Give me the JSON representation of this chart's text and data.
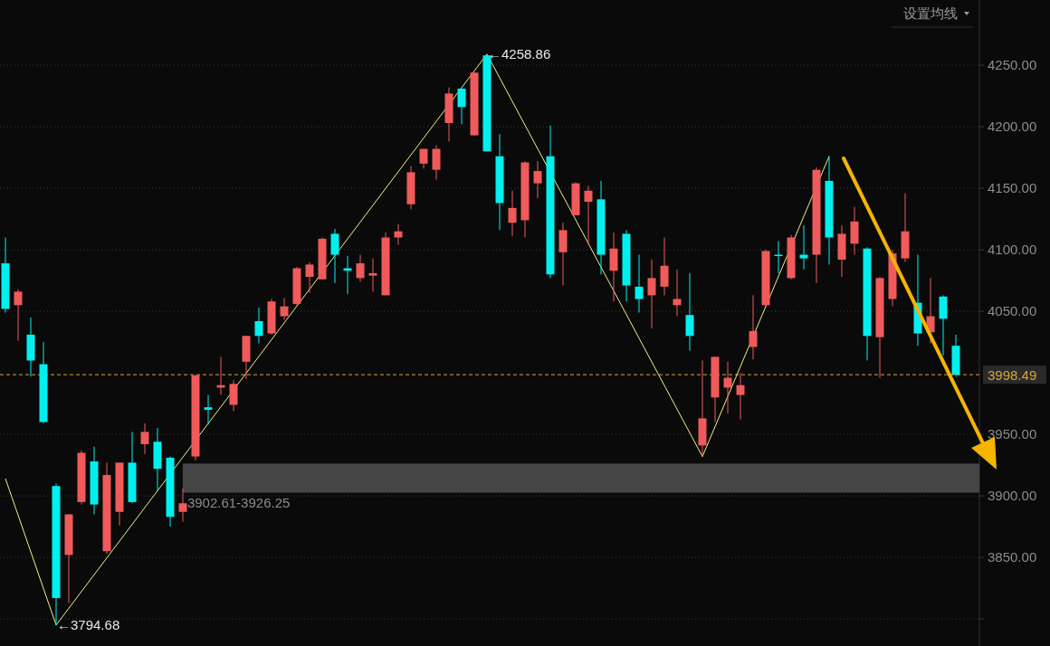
{
  "chart_data": {
    "type": "candlestick",
    "categories": [
      null,
      null,
      null,
      null,
      null,
      null,
      null,
      null,
      null,
      null,
      null,
      null,
      null,
      null,
      null,
      null,
      null,
      null,
      null,
      null,
      null,
      null,
      null,
      null,
      null,
      null,
      null,
      null,
      null,
      null,
      null,
      null,
      null,
      null,
      null,
      null,
      null,
      null,
      null,
      null,
      null,
      null,
      null,
      null,
      null,
      null,
      null,
      null,
      null,
      null,
      null,
      null,
      null,
      null,
      null,
      null,
      null,
      null,
      null,
      null,
      null,
      null,
      null,
      null,
      null,
      null,
      null,
      null,
      null,
      null,
      null,
      null,
      null,
      null,
      null,
      null
    ],
    "ohlc": [
      [
        4089,
        4110,
        4049,
        4052
      ],
      [
        4055,
        4068,
        4026,
        4066
      ],
      [
        4031,
        4045,
        3997,
        4010
      ],
      [
        4007,
        4025,
        3959,
        3960
      ],
      [
        3908,
        3910,
        3794.68,
        3817
      ],
      [
        3852,
        3885,
        3813,
        3885
      ],
      [
        3895,
        3937,
        3893,
        3935
      ],
      [
        3928,
        3940,
        3885,
        3893
      ],
      [
        3855,
        3927,
        3853,
        3917
      ],
      [
        3887,
        3927,
        3876,
        3927
      ],
      [
        3927,
        3952,
        3894,
        3895
      ],
      [
        3942,
        3959,
        3934,
        3952
      ],
      [
        3944,
        3955,
        3904,
        3922
      ],
      [
        3931,
        3932,
        3875,
        3883
      ],
      [
        3887,
        3906,
        3879,
        3894
      ],
      [
        3932,
        3998,
        3929,
        3998
      ],
      [
        3972,
        3982,
        3958,
        3970
      ],
      [
        3988,
        4013,
        3982,
        3990
      ],
      [
        3974,
        3994,
        3969,
        3991
      ],
      [
        4009,
        4030,
        3995,
        4030
      ],
      [
        4042,
        4053,
        4024,
        4030
      ],
      [
        4032,
        4060,
        4031,
        4058
      ],
      [
        4046,
        4061,
        4043,
        4054
      ],
      [
        4056,
        4086,
        4055,
        4085
      ],
      [
        4078,
        4090,
        4065,
        4088
      ],
      [
        4076,
        4110,
        4076,
        4109
      ],
      [
        4113,
        4117,
        4073,
        4096
      ],
      [
        4085,
        4095,
        4064,
        4083
      ],
      [
        4077,
        4096,
        4074,
        4089
      ],
      [
        4079,
        4093,
        4066,
        4081
      ],
      [
        4063,
        4114,
        4063,
        4110
      ],
      [
        4110,
        4121,
        4104,
        4115
      ],
      [
        4137,
        4168,
        4133,
        4163
      ],
      [
        4170,
        4182,
        4166,
        4182
      ],
      [
        4165,
        4185,
        4157,
        4182
      ],
      [
        4203,
        4232,
        4188,
        4227
      ],
      [
        4231,
        4231,
        4202,
        4216
      ],
      [
        4193,
        4244,
        4193,
        4244
      ],
      [
        4258,
        4258.86,
        4180,
        4180
      ],
      [
        4176,
        4194,
        4116,
        4138
      ],
      [
        4122,
        4148,
        4111,
        4134
      ],
      [
        4124,
        4172,
        4110,
        4171
      ],
      [
        4154,
        4172,
        4142,
        4164
      ],
      [
        4176,
        4201,
        4077,
        4080
      ],
      [
        4098,
        4122,
        4071,
        4116
      ],
      [
        4128,
        4155,
        4128,
        4154
      ],
      [
        4139,
        4152,
        4104,
        4148
      ],
      [
        4141,
        4156,
        4080,
        4096
      ],
      [
        4083,
        4114,
        4058,
        4101
      ],
      [
        4113,
        4116,
        4058,
        4071
      ],
      [
        4070,
        4096,
        4049,
        4060
      ],
      [
        4063,
        4092,
        4036,
        4077
      ],
      [
        4070,
        4110,
        4063,
        4087
      ],
      [
        4055,
        4084,
        4046,
        4060
      ],
      [
        4047,
        4081,
        4018,
        4030
      ],
      [
        3941,
        4010,
        3932,
        3963
      ],
      [
        3980,
        4013,
        3960,
        4013
      ],
      [
        3988,
        4009,
        3967,
        3996
      ],
      [
        3982,
        4000,
        3962,
        3990
      ],
      [
        4021,
        4063,
        4011,
        4034
      ],
      [
        4055,
        4100,
        4054,
        4099
      ],
      [
        4096,
        4107,
        4081,
        4095
      ],
      [
        4077,
        4112,
        4076,
        4110
      ],
      [
        4096,
        4120,
        4084,
        4093
      ],
      [
        4096,
        4167,
        4073,
        4165
      ],
      [
        4156,
        4176,
        4088,
        4110
      ],
      [
        4092,
        4120,
        4078,
        4113
      ],
      [
        4105,
        4135,
        4096,
        4123
      ],
      [
        4101,
        4102,
        4010,
        4030
      ],
      [
        4029,
        4078,
        3996,
        4077
      ],
      [
        4060,
        4100,
        4054,
        4097
      ],
      [
        4093,
        4146,
        4090,
        4115
      ],
      [
        4057,
        4096,
        4022,
        4032
      ],
      [
        4033,
        4077,
        4024,
        4046
      ],
      [
        4062,
        4063,
        4014,
        4044
      ],
      [
        4022,
        4031,
        3997,
        3998.49
      ]
    ],
    "colors": [
      "#00f0f0",
      "#f05a5a",
      "#00f0f0",
      "#00f0f0",
      "#00f0f0",
      "#f05a5a",
      "#f05a5a",
      "#00f0f0",
      "#f05a5a",
      "#f05a5a",
      "#00f0f0",
      "#f05a5a",
      "#00f0f0",
      "#00f0f0",
      "#f05a5a",
      "#f05a5a",
      "#00f0f0",
      "#f05a5a",
      "#f05a5a",
      "#f05a5a",
      "#00f0f0",
      "#f05a5a",
      "#f05a5a",
      "#f05a5a",
      "#f05a5a",
      "#f05a5a",
      "#00f0f0",
      "#00f0f0",
      "#f05a5a",
      "#f05a5a",
      "#f05a5a",
      "#f05a5a",
      "#f05a5a",
      "#f05a5a",
      "#f05a5a",
      "#f05a5a",
      "#00f0f0",
      "#f05a5a",
      "#00f0f0",
      "#00f0f0",
      "#f05a5a",
      "#f05a5a",
      "#f05a5a",
      "#00f0f0",
      "#f05a5a",
      "#f05a5a",
      "#f05a5a",
      "#00f0f0",
      "#f05a5a",
      "#00f0f0",
      "#00f0f0",
      "#f05a5a",
      "#f05a5a",
      "#f05a5a",
      "#00f0f0",
      "#f05a5a",
      "#f05a5a",
      "#f05a5a",
      "#f05a5a",
      "#f05a5a",
      "#f05a5a",
      "#00f0f0",
      "#f05a5a",
      "#00f0f0",
      "#f05a5a",
      "#00f0f0",
      "#f05a5a",
      "#f05a5a",
      "#00f0f0",
      "#f05a5a",
      "#f05a5a",
      "#f05a5a",
      "#00f0f0",
      "#f05a5a",
      "#00f0f0",
      "#00f0f0"
    ],
    "series": [
      {
        "type": "line",
        "values": [
          3914,
          null,
          null,
          null,
          3795,
          null,
          null,
          null,
          null,
          null,
          null,
          null,
          null,
          null,
          null,
          null,
          null,
          null,
          null,
          null,
          null,
          null,
          null,
          null,
          null,
          null,
          null,
          null,
          null,
          null,
          null,
          null,
          null,
          null,
          null,
          null,
          null,
          null,
          4259,
          null,
          null,
          null,
          null,
          null,
          null,
          null,
          null,
          null,
          null,
          null,
          null,
          null,
          null,
          null,
          null,
          3932,
          null,
          null,
          null,
          null,
          null,
          null,
          null,
          null,
          null,
          4176,
          null,
          null,
          null,
          null,
          null,
          null,
          null,
          null,
          null,
          null
        ],
        "color": "#f5f08a"
      }
    ],
    "ylim": [
      3778,
      4303
    ],
    "yticks": [
      {
        "value": 3800,
        "label": null
      },
      {
        "value": 3850,
        "label": "3850.00"
      },
      {
        "value": 3900,
        "label": "3900.00"
      },
      {
        "value": 3950,
        "label": "3950.00"
      },
      {
        "value": 4050,
        "label": "4050.00"
      },
      {
        "value": 4100,
        "label": "4100.00"
      },
      {
        "value": 4150,
        "label": "4150.00"
      },
      {
        "value": 4200,
        "label": "4200.00"
      },
      {
        "value": 4250,
        "label": "4250.00"
      }
    ],
    "grid": "y",
    "ref_lines": [
      {
        "axis": "y",
        "value": 3998.49,
        "label": "3998.49",
        "color": "#d9a53a",
        "line_style": "dashed"
      }
    ],
    "bands": [
      {
        "axis": "y",
        "from": 3902.61,
        "to": 3926.25,
        "label": "3902.61-3926.25",
        "color": "#454545"
      }
    ],
    "annotations": [
      "设置均线",
      "←4258.86",
      "←3794.68"
    ]
  }
}
